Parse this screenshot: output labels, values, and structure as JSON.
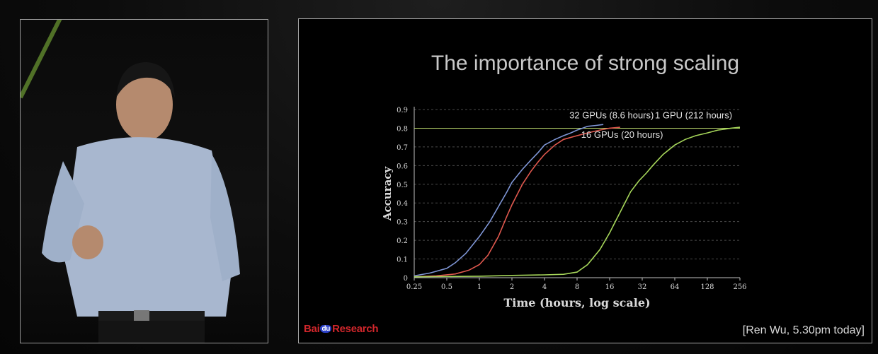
{
  "slide": {
    "title": "The importance of strong scaling",
    "logo": {
      "part1": "Bai",
      "part2": "du",
      "part3": "Research"
    },
    "citation": "[Ren Wu, 5.30pm today]"
  },
  "colors": {
    "series_32": "#7f96d6",
    "series_16": "#e0584e",
    "series_1": "#a6d65a",
    "target_line": "#b7d36a",
    "grid": "#4a4a4a",
    "axis_text": "#d8d8d8"
  },
  "chart_data": {
    "type": "line",
    "title": "The importance of strong scaling",
    "xlabel": "Time (hours, log scale)",
    "ylabel": "Accuracy",
    "x_scale": "log2",
    "xlim": [
      0.25,
      256
    ],
    "ylim": [
      0,
      0.9
    ],
    "x_ticks": [
      0.25,
      0.5,
      1,
      2,
      4,
      8,
      16,
      32,
      64,
      128,
      256
    ],
    "x_tick_labels": [
      "0.25",
      "0.5",
      "1",
      "2",
      "4",
      "8",
      "16",
      "32",
      "64",
      "128",
      "256"
    ],
    "y_ticks": [
      0,
      0.1,
      0.2,
      0.3,
      0.4,
      0.5,
      0.6,
      0.7,
      0.8,
      0.9
    ],
    "y_tick_labels": [
      "0",
      "0.1",
      "0.2",
      "0.3",
      "0.4",
      "0.5",
      "0.6",
      "0.7",
      "0.8",
      "0.9"
    ],
    "grid": "horizontal dashed",
    "reference_line": {
      "y": 0.8
    },
    "series": [
      {
        "name": "32 GPUs (8.6 hours)",
        "color": "#7f96d6",
        "x": [
          0.25,
          0.35,
          0.5,
          0.6,
          0.75,
          1.0,
          1.25,
          1.5,
          1.8,
          2.0,
          2.5,
          3.0,
          3.5,
          4.0,
          5.0,
          6.0,
          7.0,
          8.0,
          9.0,
          10.0,
          12.0,
          14.0
        ],
        "y": [
          0.01,
          0.025,
          0.05,
          0.08,
          0.13,
          0.22,
          0.3,
          0.38,
          0.46,
          0.51,
          0.58,
          0.63,
          0.67,
          0.71,
          0.74,
          0.76,
          0.775,
          0.79,
          0.8,
          0.81,
          0.815,
          0.82
        ]
      },
      {
        "name": "16 GPUs (20 hours)",
        "color": "#e0584e",
        "x": [
          0.25,
          0.4,
          0.6,
          0.8,
          1.0,
          1.2,
          1.5,
          1.8,
          2.0,
          2.5,
          3.0,
          3.5,
          4.0,
          5.0,
          6.0,
          8.0,
          10.0,
          13.0,
          16.0,
          20.0
        ],
        "y": [
          0.005,
          0.01,
          0.02,
          0.04,
          0.07,
          0.12,
          0.22,
          0.33,
          0.39,
          0.5,
          0.57,
          0.62,
          0.66,
          0.71,
          0.74,
          0.76,
          0.775,
          0.79,
          0.8,
          0.805
        ]
      },
      {
        "name": "1 GPU (212 hours)",
        "color": "#a6d65a",
        "x": [
          0.25,
          1.0,
          2.0,
          4.0,
          6.0,
          8.0,
          10.0,
          13.0,
          16.0,
          20.0,
          25.0,
          30.0,
          35.0,
          40.0,
          50.0,
          64.0,
          80.0,
          100.0,
          128.0,
          160.0,
          212.0,
          256.0
        ],
        "y": [
          0.005,
          0.008,
          0.012,
          0.015,
          0.018,
          0.03,
          0.07,
          0.15,
          0.24,
          0.35,
          0.46,
          0.52,
          0.56,
          0.6,
          0.66,
          0.71,
          0.74,
          0.76,
          0.775,
          0.79,
          0.8,
          0.805
        ]
      }
    ],
    "annotations": [
      {
        "text": "32 GPUs (8.6 hours)",
        "series": 0
      },
      {
        "text": "16 GPUs (20 hours)",
        "series": 1
      },
      {
        "text": "1 GPU (212 hours)",
        "series": 2
      }
    ]
  }
}
